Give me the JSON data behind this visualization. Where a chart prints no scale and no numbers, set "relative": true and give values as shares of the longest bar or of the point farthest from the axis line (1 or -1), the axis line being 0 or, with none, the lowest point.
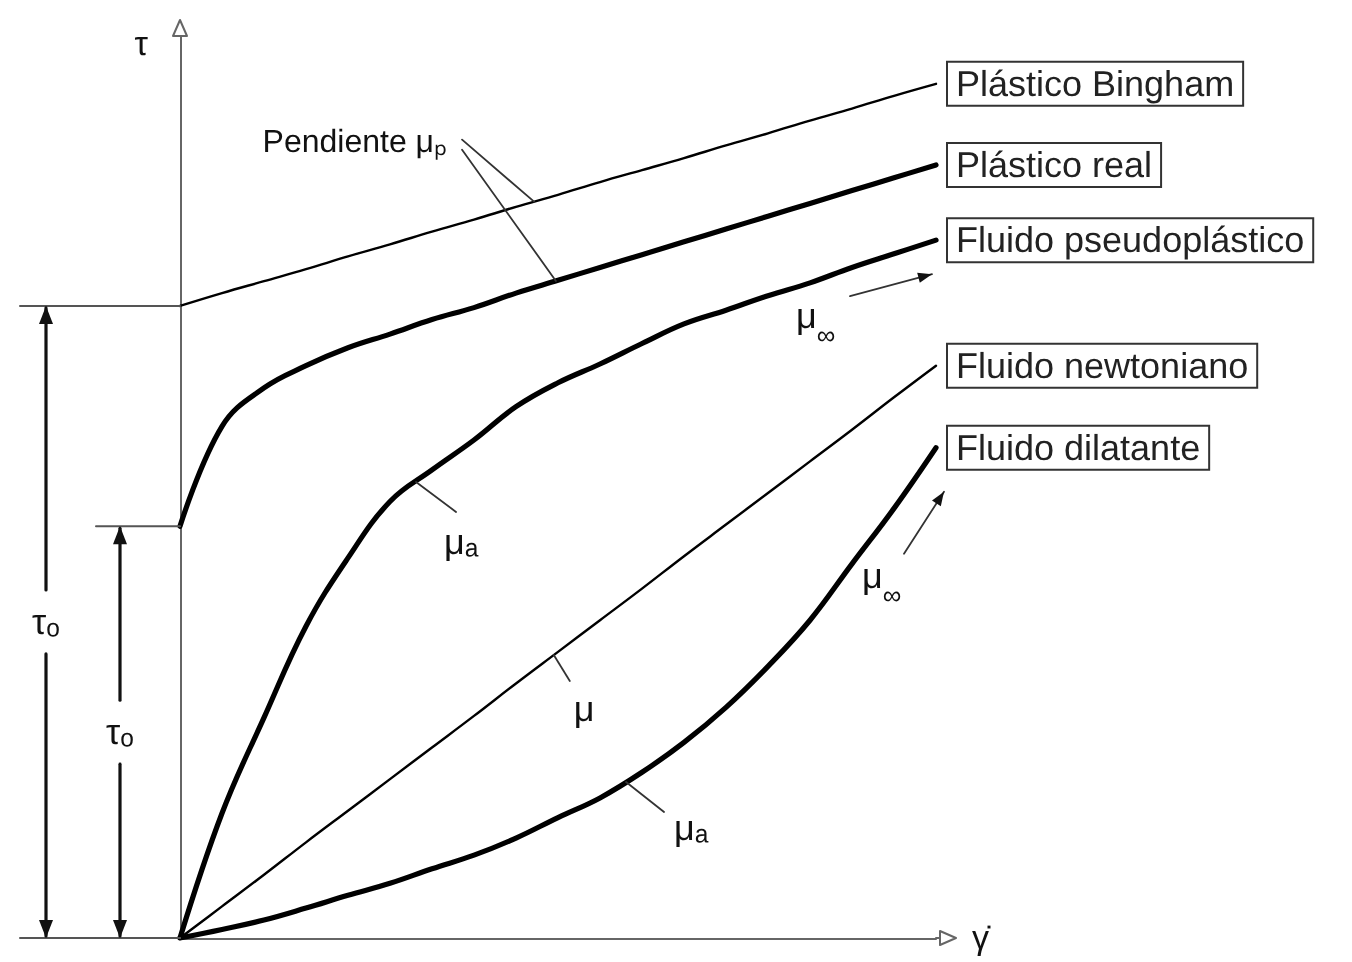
{
  "chart_data": {
    "type": "line",
    "relative": true,
    "marker": "none",
    "xlabel": "γ̇",
    "ylabel": "τ",
    "categories": [
      null,
      null,
      null,
      null,
      null,
      null,
      null,
      null,
      null,
      null,
      null,
      null,
      null,
      null,
      null,
      null,
      null,
      null,
      null
    ],
    "series": [
      {
        "name": "Plástico Bingham",
        "color": "#000000",
        "values": [
          0.74,
          0.755,
          0.769,
          0.783,
          0.798,
          0.812,
          0.827,
          0.841,
          0.856,
          0.87,
          0.885,
          0.899,
          0.913,
          0.928,
          0.942,
          0.957,
          0.971,
          0.986,
          1
        ]
      },
      {
        "name": "Plástico real",
        "color": "#000000",
        "values": [
          0.482,
          0.599,
          0.644,
          0.67,
          0.691,
          0.707,
          0.724,
          0.738,
          0.755,
          0.77,
          0.785,
          0.8,
          0.815,
          0.83,
          0.845,
          0.86,
          0.875,
          0.89,
          0.905
        ]
      },
      {
        "name": "Fluido pseudoplástico",
        "color": "#000000",
        "values": [
          0,
          0.146,
          0.258,
          0.365,
          0.445,
          0.511,
          0.548,
          0.583,
          0.622,
          0.65,
          0.672,
          0.696,
          0.719,
          0.735,
          0.752,
          0.767,
          0.785,
          0.801,
          0.817
        ]
      },
      {
        "name": "Fluido newtoniano",
        "color": "#000000",
        "values": [
          0,
          0.037,
          0.074,
          0.112,
          0.149,
          0.186,
          0.223,
          0.26,
          0.298,
          0.335,
          0.372,
          0.409,
          0.447,
          0.484,
          0.521,
          0.558,
          0.595,
          0.633,
          0.67
        ]
      },
      {
        "name": "Fluido dilatante",
        "color": "#000000",
        "values": [
          0,
          0.01,
          0.021,
          0.035,
          0.05,
          0.064,
          0.081,
          0.097,
          0.117,
          0.141,
          0.164,
          0.194,
          0.229,
          0.27,
          0.318,
          0.372,
          0.438,
          0.503,
          0.574
        ]
      }
    ],
    "annotations": [
      "Pendiente μₚ",
      "μ$_{∞}$",
      "μₐ",
      "μ",
      "μₐ",
      "μ$_{∞}$",
      "τₒ",
      "τₒ"
    ]
  }
}
